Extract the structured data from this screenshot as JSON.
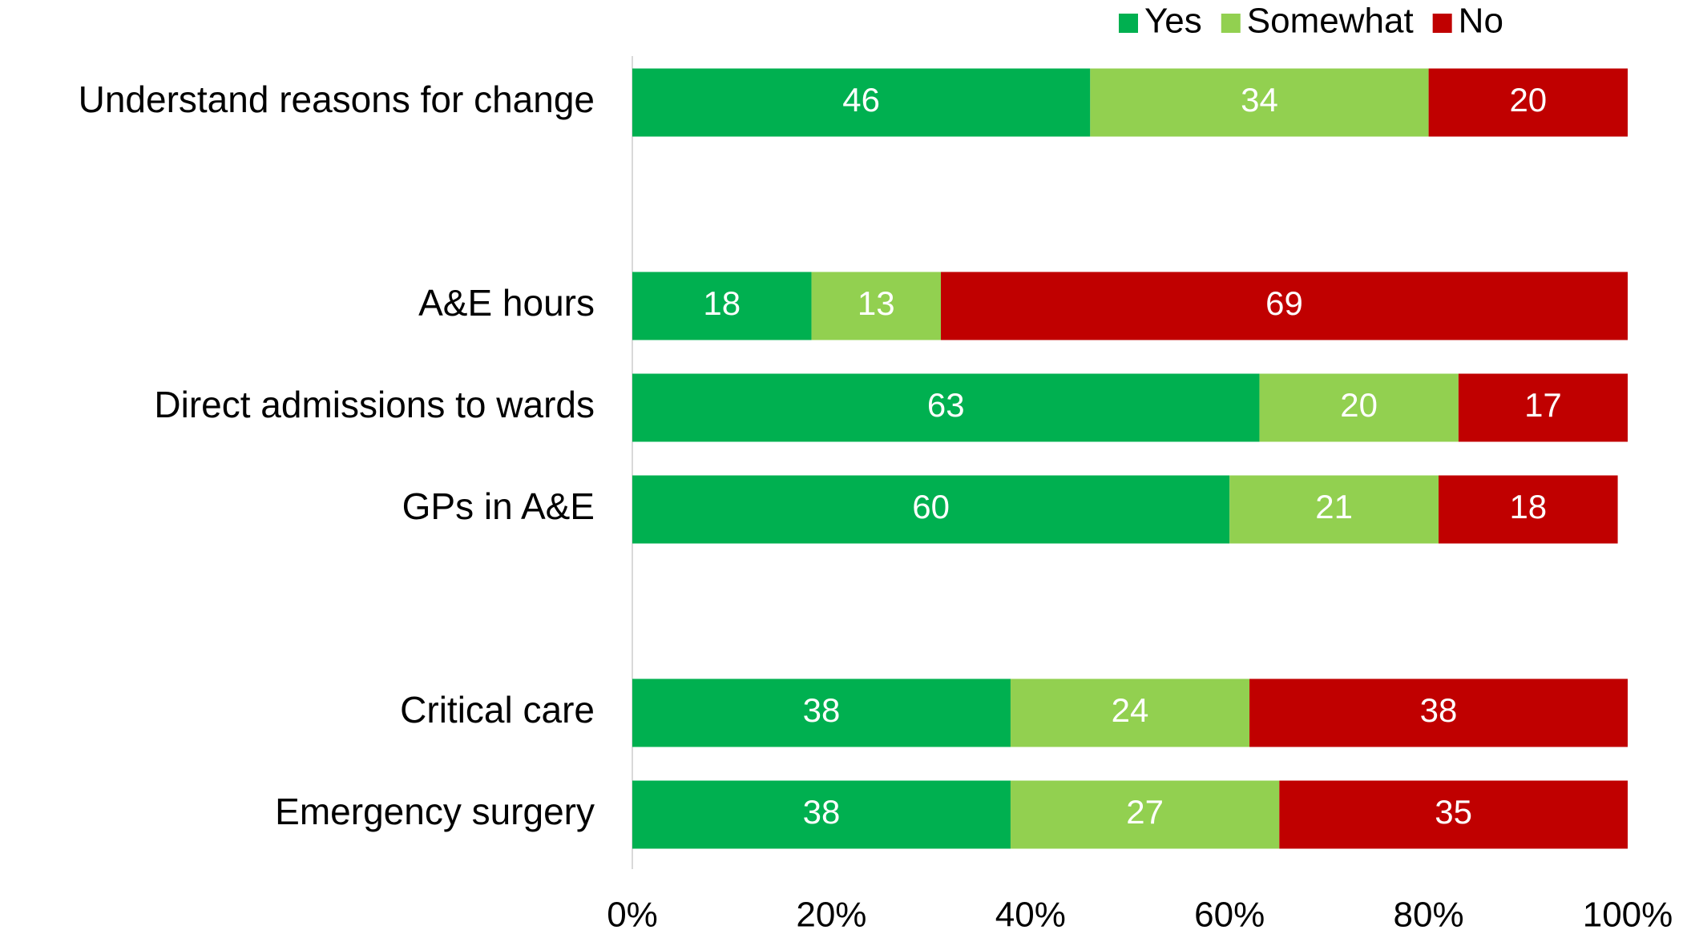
{
  "chart_data": {
    "type": "stacked_bar_horizontal",
    "categories": [
      "Understand reasons for change",
      null,
      "A&E hours",
      "Direct admissions to wards",
      "GPs in A&E",
      null,
      "Critical care",
      "Emergency surgery"
    ],
    "series": [
      {
        "name": "Yes",
        "color": "#00b050",
        "values": [
          46,
          null,
          18,
          63,
          60,
          null,
          38,
          38
        ]
      },
      {
        "name": "Somewhat",
        "color": "#92d050",
        "values": [
          34,
          null,
          13,
          20,
          21,
          null,
          24,
          27
        ]
      },
      {
        "name": "No",
        "color": "#c00000",
        "values": [
          20,
          null,
          69,
          17,
          18,
          null,
          38,
          35
        ]
      }
    ],
    "xlim": [
      0,
      100
    ],
    "xticks": [
      {
        "value": 0,
        "label": "0%"
      },
      {
        "value": 20,
        "label": "20%"
      },
      {
        "value": 40,
        "label": "40%"
      },
      {
        "value": 60,
        "label": "60%"
      },
      {
        "value": 80,
        "label": "80%"
      },
      {
        "value": 100,
        "label": "100%"
      }
    ],
    "legend": "top-right"
  }
}
